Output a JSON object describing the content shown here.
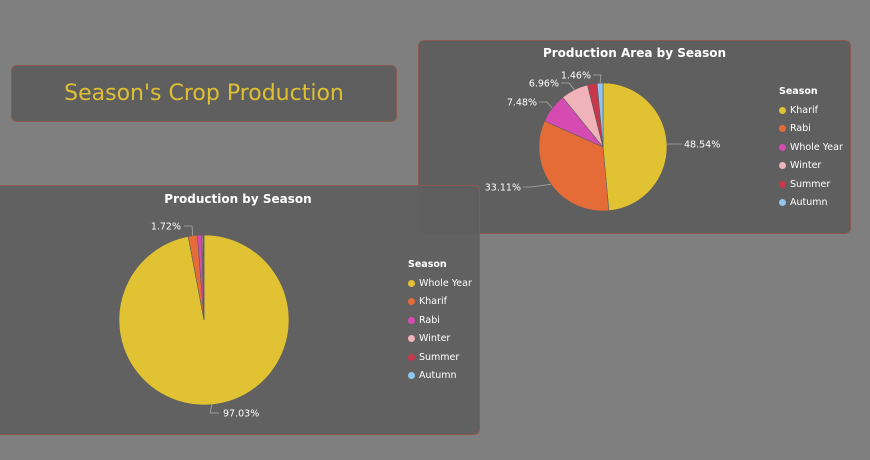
{
  "header": {
    "title": "Season's Crop Production"
  },
  "chart_data": [
    {
      "type": "pie",
      "title": "Production Area by Season",
      "legend_title": "Season",
      "legend_position": "right",
      "slices": [
        {
          "label": "Kharif",
          "value": 48.54,
          "display": "48.54%",
          "color": "#e1c233"
        },
        {
          "label": "Rabi",
          "value": 33.11,
          "display": "33.11%",
          "color": "#e66c37"
        },
        {
          "label": "Whole Year",
          "value": 7.48,
          "display": "7.48%",
          "color": "#d64bb1"
        },
        {
          "label": "Winter",
          "value": 6.96,
          "display": "6.96%",
          "color": "#f0b3b9"
        },
        {
          "label": "Summer",
          "value": 2.45,
          "display": "",
          "color": "#c8384a"
        },
        {
          "label": "Autumn",
          "value": 1.46,
          "display": "1.46%",
          "color": "#8fc5ef"
        }
      ]
    },
    {
      "type": "pie",
      "title": "Production by Season",
      "legend_title": "Season",
      "legend_position": "right",
      "slices": [
        {
          "label": "Whole Year",
          "value": 97.03,
          "display": "97.03%",
          "color": "#e1c233"
        },
        {
          "label": "Kharif",
          "value": 1.72,
          "display": "1.72%",
          "color": "#e66c37"
        },
        {
          "label": "Rabi",
          "value": 0.8,
          "display": "",
          "color": "#d64bb1"
        },
        {
          "label": "Winter",
          "value": 0.2,
          "display": "",
          "color": "#f0b3b9"
        },
        {
          "label": "Summer",
          "value": 0.2,
          "display": "",
          "color": "#c8384a"
        },
        {
          "label": "Autumn",
          "value": 0.05,
          "display": "",
          "color": "#8fc5ef"
        }
      ]
    }
  ]
}
